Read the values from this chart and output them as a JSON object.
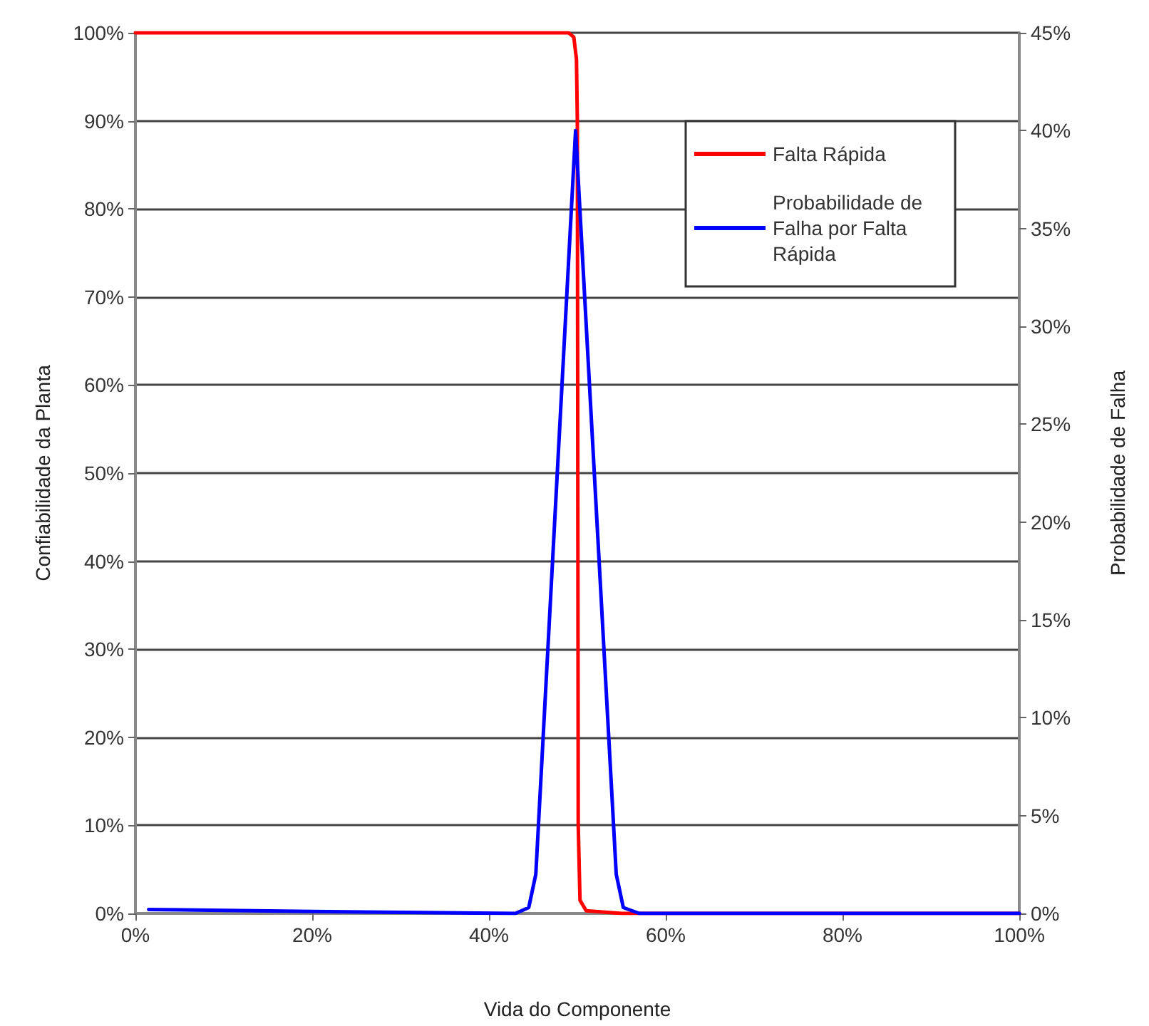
{
  "chart_data": {
    "type": "line",
    "xlabel": "Vida do Componente",
    "ylabel": "Confiabilidade da Planta",
    "y2label": "Probabilidade de Falha",
    "xlim": [
      0,
      100
    ],
    "xticks": [
      {
        "value": 0,
        "label": "0%"
      },
      {
        "value": 20,
        "label": "20%"
      },
      {
        "value": 40,
        "label": "40%"
      },
      {
        "value": 60,
        "label": "60%"
      },
      {
        "value": 80,
        "label": "80%"
      },
      {
        "value": 100,
        "label": "100%"
      }
    ],
    "ylim": [
      0,
      100
    ],
    "yticks": [
      {
        "value": 0,
        "label": "0%"
      },
      {
        "value": 10,
        "label": "10%"
      },
      {
        "value": 20,
        "label": "20%"
      },
      {
        "value": 30,
        "label": "30%"
      },
      {
        "value": 40,
        "label": "40%"
      },
      {
        "value": 50,
        "label": "50%"
      },
      {
        "value": 60,
        "label": "60%"
      },
      {
        "value": 70,
        "label": "70%"
      },
      {
        "value": 80,
        "label": "80%"
      },
      {
        "value": 90,
        "label": "90%"
      },
      {
        "value": 100,
        "label": "100%"
      }
    ],
    "y2lim": [
      0,
      45
    ],
    "y2ticks": [
      {
        "value": 0,
        "label": "0%"
      },
      {
        "value": 5,
        "label": "5%"
      },
      {
        "value": 10,
        "label": "10%"
      },
      {
        "value": 15,
        "label": "15%"
      },
      {
        "value": 20,
        "label": "20%"
      },
      {
        "value": 25,
        "label": "25%"
      },
      {
        "value": 30,
        "label": "30%"
      },
      {
        "value": 35,
        "label": "35%"
      },
      {
        "value": 40,
        "label": "40%"
      },
      {
        "value": 45,
        "label": "45%"
      }
    ],
    "grid": "y",
    "legend": "top right",
    "line_style": "solid",
    "series": [
      {
        "name": "Falta Rápida",
        "color": "#ff0000",
        "x": [
          0,
          49,
          49.6,
          49.9,
          50,
          50.1,
          50.3,
          51,
          55,
          100
        ],
        "values": [
          100,
          100,
          99.5,
          97,
          90,
          10,
          1.5,
          0.3,
          0,
          0
        ]
      },
      {
        "name": "Probabilidade de Falha por Falta Rápida",
        "color": "#0000ff",
        "axis": "y2",
        "x": [
          1.5,
          20,
          43,
          44.5,
          45.3,
          49.8,
          54.4,
          55.2,
          57,
          100
        ],
        "values": [
          0.2,
          0.1,
          0,
          0.3,
          2,
          40,
          2,
          0.3,
          0,
          0
        ]
      }
    ]
  }
}
